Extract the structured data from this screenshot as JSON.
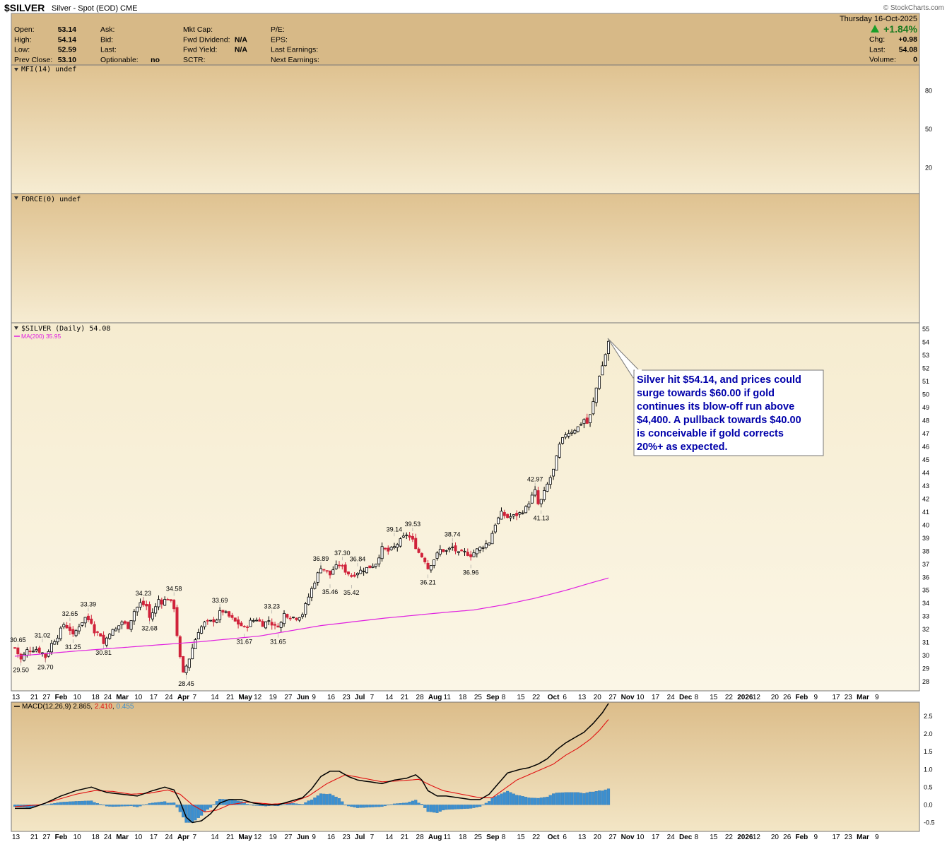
{
  "header": {
    "symbol": "$SILVER",
    "name": "Silver - Spot (EOD)",
    "exchange": "CME",
    "watermark": "© StockCharts.com",
    "date": "Thursday 16-Oct-2025",
    "pct_change": "+1.84%",
    "up_arrow_color": "#1a9e2a",
    "col1": [
      {
        "label": "Open:",
        "value": "53.14"
      },
      {
        "label": "High:",
        "value": "54.14"
      },
      {
        "label": "Low:",
        "value": "52.59"
      },
      {
        "label": "Prev Close:",
        "value": "53.10"
      }
    ],
    "col2": [
      {
        "label": "Ask:",
        "value": ""
      },
      {
        "label": "Bid:",
        "value": ""
      },
      {
        "label": "Last:",
        "value": ""
      },
      {
        "label": "Optionable:",
        "value": "no"
      }
    ],
    "col3": [
      {
        "label": "Mkt Cap:",
        "value": ""
      },
      {
        "label": "Fwd Dividend:",
        "value": "N/A"
      },
      {
        "label": "Fwd Yield:",
        "value": "N/A"
      },
      {
        "label": "SCTR:",
        "value": ""
      }
    ],
    "col4": [
      {
        "label": "P/E:",
        "value": ""
      },
      {
        "label": "EPS:",
        "value": ""
      },
      {
        "label": "Last Earnings:",
        "value": ""
      },
      {
        "label": "Next Earnings:",
        "value": ""
      }
    ],
    "col5": [
      {
        "label": "Chg:",
        "value": "+0.98"
      },
      {
        "label": "Last:",
        "value": "54.08"
      },
      {
        "label": "Volume:",
        "value": "0"
      }
    ]
  },
  "chart_data": {
    "type": "candlestick",
    "panels": [
      {
        "id": "mfi",
        "label": "MFI(14) undef",
        "yticks": [
          80,
          50,
          20
        ],
        "ylim": [
          0,
          100
        ],
        "reference_lines": [
          80,
          20
        ]
      },
      {
        "id": "force",
        "label": "FORCE(0) undef",
        "yticks": []
      },
      {
        "id": "price",
        "label": "$SILVER (Daily) 54.08",
        "ma_label": "MA(200) 35.95",
        "ylim": [
          27.3,
          55.5
        ],
        "yticks": [
          28,
          29,
          30,
          31,
          32,
          33,
          34,
          35,
          36,
          37,
          38,
          39,
          40,
          41,
          42,
          43,
          44,
          45,
          46,
          47,
          48,
          49,
          50,
          51,
          52,
          53,
          54,
          55
        ]
      },
      {
        "id": "macd",
        "label": "MACD(12,26,9)",
        "macd_value": "2.865",
        "signal_value": "2.410",
        "hist_value": "0.455",
        "ylim": [
          -0.75,
          2.9
        ],
        "yticks": [
          "2.5",
          "2.0",
          "1.5",
          "1.0",
          "0.5",
          "0.0",
          "-0.5"
        ]
      }
    ],
    "x_labels": [
      "13",
      "21",
      "27",
      "Feb",
      "10",
      "18",
      "24",
      "Mar",
      "10",
      "17",
      "24",
      "Apr",
      "7",
      "14",
      "21",
      "May",
      "12",
      "19",
      "27",
      "Jun",
      "9",
      "16",
      "23",
      "Jul",
      "7",
      "14",
      "21",
      "28",
      "Aug",
      "11",
      "18",
      "25",
      "Sep",
      "8",
      "15",
      "22",
      "Oct",
      "6",
      "13",
      "20",
      "27",
      "Nov",
      "10",
      "17",
      "24",
      "Dec",
      "8",
      "15",
      "22",
      "2026",
      "12",
      "20",
      "26",
      "Feb",
      "9",
      "17",
      "23",
      "Mar",
      "9"
    ],
    "x_label_days": [
      0,
      6,
      10,
      14,
      20,
      26,
      30,
      34,
      40,
      45,
      50,
      54,
      59,
      65,
      70,
      74,
      79,
      84,
      89,
      93,
      98,
      103,
      108,
      112,
      117,
      122,
      127,
      132,
      136,
      141,
      146,
      151,
      155,
      160,
      165,
      170,
      175,
      180,
      185,
      190,
      195,
      199,
      204,
      209,
      214,
      218,
      223,
      228,
      233,
      237,
      242,
      248,
      252,
      256,
      262,
      268,
      272,
      276,
      282
    ],
    "close_anchors": [
      [
        0,
        30.6
      ],
      [
        2,
        29.7
      ],
      [
        4,
        30.4
      ],
      [
        7,
        30.5
      ],
      [
        9,
        30.2
      ],
      [
        10,
        29.9
      ],
      [
        12,
        30.9
      ],
      [
        14,
        31.5
      ],
      [
        16,
        32.4
      ],
      [
        18,
        32.0
      ],
      [
        19,
        31.5
      ],
      [
        21,
        32.3
      ],
      [
        23,
        32.9
      ],
      [
        25,
        32.6
      ],
      [
        26,
        31.9
      ],
      [
        28,
        31.6
      ],
      [
        29,
        30.9
      ],
      [
        31,
        31.8
      ],
      [
        33,
        32.0
      ],
      [
        35,
        32.6
      ],
      [
        37,
        32.2
      ],
      [
        39,
        33.4
      ],
      [
        41,
        34.0
      ],
      [
        43,
        33.8
      ],
      [
        44,
        32.9
      ],
      [
        46,
        33.7
      ],
      [
        47,
        34.3
      ],
      [
        48,
        34.1
      ],
      [
        50,
        34.4
      ],
      [
        52,
        33.7
      ],
      [
        53,
        31.6
      ],
      [
        54,
        29.8
      ],
      [
        55,
        28.6
      ],
      [
        57,
        29.8
      ],
      [
        58,
        30.6
      ],
      [
        60,
        31.9
      ],
      [
        62,
        32.5
      ],
      [
        64,
        32.6
      ],
      [
        66,
        32.8
      ],
      [
        67,
        33.3
      ],
      [
        68,
        33.4
      ],
      [
        70,
        33.0
      ],
      [
        72,
        32.6
      ],
      [
        74,
        32.3
      ],
      [
        75,
        32.1
      ],
      [
        77,
        32.6
      ],
      [
        79,
        32.8
      ],
      [
        81,
        32.4
      ],
      [
        83,
        32.7
      ],
      [
        85,
        32.2
      ],
      [
        87,
        32.5
      ],
      [
        88,
        33.2
      ],
      [
        90,
        33.0
      ],
      [
        92,
        32.9
      ],
      [
        94,
        33.2
      ],
      [
        96,
        34.5
      ],
      [
        98,
        35.7
      ],
      [
        100,
        36.8
      ],
      [
        101,
        36.6
      ],
      [
        103,
        36.2
      ],
      [
        104,
        36.6
      ],
      [
        106,
        37.0
      ],
      [
        108,
        36.5
      ],
      [
        110,
        36.1
      ],
      [
        112,
        36.4
      ],
      [
        114,
        36.6
      ],
      [
        116,
        36.8
      ],
      [
        118,
        37.1
      ],
      [
        120,
        38.2
      ],
      [
        122,
        38.0
      ],
      [
        124,
        38.3
      ],
      [
        126,
        38.8
      ],
      [
        128,
        39.3
      ],
      [
        130,
        38.8
      ],
      [
        132,
        37.9
      ],
      [
        134,
        37.3
      ],
      [
        135,
        36.7
      ],
      [
        137,
        37.4
      ],
      [
        139,
        38.1
      ],
      [
        141,
        38.0
      ],
      [
        143,
        38.3
      ],
      [
        145,
        37.8
      ],
      [
        147,
        37.9
      ],
      [
        149,
        37.7
      ],
      [
        151,
        38.1
      ],
      [
        153,
        38.4
      ],
      [
        155,
        38.7
      ],
      [
        157,
        40.1
      ],
      [
        159,
        40.9
      ],
      [
        161,
        40.6
      ],
      [
        163,
        40.7
      ],
      [
        165,
        40.9
      ],
      [
        167,
        41.3
      ],
      [
        169,
        42.2
      ],
      [
        170,
        42.6
      ],
      [
        171,
        41.6
      ],
      [
        172,
        41.9
      ],
      [
        174,
        43.1
      ],
      [
        176,
        44.2
      ],
      [
        178,
        46.1
      ],
      [
        180,
        47.0
      ],
      [
        182,
        47.2
      ],
      [
        184,
        47.5
      ],
      [
        186,
        48.1
      ],
      [
        187,
        47.8
      ],
      [
        188,
        48.4
      ],
      [
        189,
        49.4
      ],
      [
        190,
        50.5
      ],
      [
        191,
        51.5
      ],
      [
        192,
        52.2
      ],
      [
        193,
        53.1
      ],
      [
        194,
        54.08
      ]
    ],
    "ma200_points": [
      [
        0,
        29.95
      ],
      [
        20,
        30.35
      ],
      [
        40,
        30.7
      ],
      [
        60,
        31.05
      ],
      [
        80,
        31.5
      ],
      [
        100,
        32.3
      ],
      [
        120,
        32.85
      ],
      [
        140,
        33.3
      ],
      [
        150,
        33.5
      ],
      [
        160,
        33.9
      ],
      [
        170,
        34.4
      ],
      [
        180,
        35.0
      ],
      [
        188,
        35.55
      ],
      [
        194,
        35.95
      ]
    ],
    "price_annotations": [
      {
        "day": 1,
        "value": "30.65",
        "pos": "above"
      },
      {
        "day": 2,
        "value": "29.50",
        "pos": "below"
      },
      {
        "day": 10,
        "value": "29.70",
        "pos": "below"
      },
      {
        "day": 9,
        "value": "31.02",
        "pos": "above"
      },
      {
        "day": 19,
        "value": "31.25",
        "pos": "below"
      },
      {
        "day": 18,
        "value": "32.65",
        "pos": "above"
      },
      {
        "day": 24,
        "value": "33.39",
        "pos": "above"
      },
      {
        "day": 29,
        "value": "30.81",
        "pos": "below"
      },
      {
        "day": 44,
        "value": "32.68",
        "pos": "below"
      },
      {
        "day": 42,
        "value": "34.23",
        "pos": "above"
      },
      {
        "day": 52,
        "value": "34.58",
        "pos": "above"
      },
      {
        "day": 56,
        "value": "28.45",
        "pos": "below"
      },
      {
        "day": 67,
        "value": "33.69",
        "pos": "above"
      },
      {
        "day": 75,
        "value": "31.67",
        "pos": "below"
      },
      {
        "day": 84,
        "value": "33.23",
        "pos": "above"
      },
      {
        "day": 86,
        "value": "31.65",
        "pos": "below"
      },
      {
        "day": 100,
        "value": "36.89",
        "pos": "above"
      },
      {
        "day": 103,
        "value": "35.46",
        "pos": "below"
      },
      {
        "day": 107,
        "value": "37.30",
        "pos": "above"
      },
      {
        "day": 110,
        "value": "35.42",
        "pos": "below"
      },
      {
        "day": 112,
        "value": "36.84",
        "pos": "above"
      },
      {
        "day": 124,
        "value": "39.14",
        "pos": "above"
      },
      {
        "day": 130,
        "value": "39.53",
        "pos": "above"
      },
      {
        "day": 135,
        "value": "36.21",
        "pos": "below"
      },
      {
        "day": 143,
        "value": "38.74",
        "pos": "above"
      },
      {
        "day": 149,
        "value": "36.96",
        "pos": "below"
      },
      {
        "day": 170,
        "value": "42.97",
        "pos": "above"
      },
      {
        "day": 172,
        "value": "41.13",
        "pos": "below"
      }
    ],
    "macd_anchors": [
      [
        0,
        -0.1
      ],
      [
        5,
        -0.1
      ],
      [
        10,
        0.05
      ],
      [
        15,
        0.25
      ],
      [
        20,
        0.4
      ],
      [
        25,
        0.5
      ],
      [
        30,
        0.35
      ],
      [
        35,
        0.3
      ],
      [
        40,
        0.25
      ],
      [
        45,
        0.4
      ],
      [
        49,
        0.5
      ],
      [
        52,
        0.42
      ],
      [
        54,
        0.1
      ],
      [
        56,
        -0.35
      ],
      [
        58,
        -0.5
      ],
      [
        61,
        -0.45
      ],
      [
        64,
        -0.25
      ],
      [
        67,
        0.05
      ],
      [
        70,
        0.15
      ],
      [
        74,
        0.15
      ],
      [
        78,
        0.05
      ],
      [
        82,
        0.0
      ],
      [
        86,
        0.0
      ],
      [
        90,
        0.1
      ],
      [
        94,
        0.2
      ],
      [
        97,
        0.45
      ],
      [
        100,
        0.8
      ],
      [
        103,
        0.95
      ],
      [
        106,
        0.95
      ],
      [
        109,
        0.8
      ],
      [
        112,
        0.7
      ],
      [
        116,
        0.65
      ],
      [
        120,
        0.6
      ],
      [
        124,
        0.7
      ],
      [
        128,
        0.75
      ],
      [
        131,
        0.85
      ],
      [
        133,
        0.7
      ],
      [
        135,
        0.4
      ],
      [
        138,
        0.25
      ],
      [
        141,
        0.25
      ],
      [
        145,
        0.2
      ],
      [
        149,
        0.15
      ],
      [
        152,
        0.15
      ],
      [
        155,
        0.3
      ],
      [
        158,
        0.6
      ],
      [
        161,
        0.9
      ],
      [
        165,
        1.0
      ],
      [
        168,
        1.05
      ],
      [
        171,
        1.15
      ],
      [
        174,
        1.3
      ],
      [
        177,
        1.55
      ],
      [
        180,
        1.75
      ],
      [
        183,
        1.9
      ],
      [
        186,
        2.05
      ],
      [
        189,
        2.3
      ],
      [
        192,
        2.6
      ],
      [
        194,
        2.865
      ]
    ],
    "signal_anchors": [
      [
        0,
        -0.05
      ],
      [
        8,
        0.0
      ],
      [
        14,
        0.15
      ],
      [
        20,
        0.3
      ],
      [
        26,
        0.4
      ],
      [
        32,
        0.38
      ],
      [
        38,
        0.3
      ],
      [
        44,
        0.33
      ],
      [
        50,
        0.42
      ],
      [
        54,
        0.3
      ],
      [
        58,
        0.0
      ],
      [
        62,
        -0.2
      ],
      [
        66,
        -0.15
      ],
      [
        70,
        0.0
      ],
      [
        76,
        0.08
      ],
      [
        84,
        0.02
      ],
      [
        90,
        0.05
      ],
      [
        96,
        0.25
      ],
      [
        102,
        0.6
      ],
      [
        108,
        0.85
      ],
      [
        114,
        0.75
      ],
      [
        120,
        0.65
      ],
      [
        126,
        0.68
      ],
      [
        132,
        0.72
      ],
      [
        136,
        0.55
      ],
      [
        140,
        0.4
      ],
      [
        146,
        0.3
      ],
      [
        152,
        0.2
      ],
      [
        156,
        0.2
      ],
      [
        160,
        0.45
      ],
      [
        164,
        0.7
      ],
      [
        168,
        0.85
      ],
      [
        172,
        1.0
      ],
      [
        176,
        1.15
      ],
      [
        180,
        1.4
      ],
      [
        184,
        1.6
      ],
      [
        188,
        1.85
      ],
      [
        191,
        2.1
      ],
      [
        194,
        2.41
      ]
    ],
    "annotation_text": [
      "Silver hit $54.14, and prices could",
      "surge towards $60.00 if gold",
      "continues its blow-off run above",
      "$4,400. A pullback towards $40.00",
      "is conceivable if gold corrects",
      "20%+ as expected."
    ],
    "colors": {
      "up": "#000000",
      "down": "#d0223a",
      "ma": "#e020e0",
      "macd": "#000000",
      "signal": "#e01010",
      "hist": "#3b8fd0",
      "grid": "#c9b48e",
      "border": "#777777",
      "note_text": "#0000aa"
    }
  }
}
